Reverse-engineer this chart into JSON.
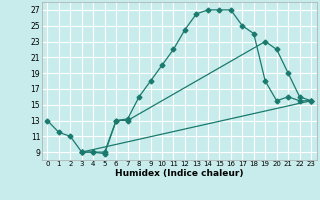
{
  "xlabel": "Humidex (Indice chaleur)",
  "bg_color": "#c8ecec",
  "grid_color": "#ffffff",
  "line_color": "#1a7a6e",
  "xlim": [
    -0.5,
    23.5
  ],
  "ylim": [
    8.0,
    28.0
  ],
  "xticks": [
    0,
    1,
    2,
    3,
    4,
    5,
    6,
    7,
    8,
    9,
    10,
    11,
    12,
    13,
    14,
    15,
    16,
    17,
    18,
    19,
    20,
    21,
    22,
    23
  ],
  "yticks": [
    9,
    11,
    13,
    15,
    17,
    19,
    21,
    23,
    25,
    27
  ],
  "line1_x": [
    0,
    1,
    2,
    3,
    4,
    5,
    6,
    7,
    8,
    9,
    10,
    11,
    12,
    13,
    14,
    15,
    16,
    17,
    18,
    19,
    20,
    21,
    22,
    23
  ],
  "line1_y": [
    13,
    11.5,
    11,
    9,
    9,
    8.8,
    13,
    13.2,
    16,
    18,
    20,
    22,
    24.5,
    26.5,
    27,
    27,
    27,
    25,
    24,
    18,
    15.5,
    16,
    15.5,
    15.5
  ],
  "line2_x": [
    3,
    4,
    5,
    6,
    7,
    19,
    20,
    21,
    22,
    23
  ],
  "line2_y": [
    9,
    9,
    9,
    13,
    13,
    23,
    22,
    19,
    16,
    15.5
  ],
  "line3_x": [
    3,
    23
  ],
  "line3_y": [
    9,
    15.5
  ]
}
